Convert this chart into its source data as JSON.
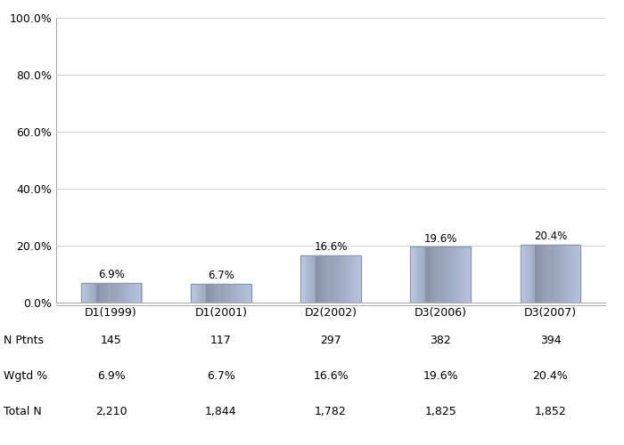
{
  "categories": [
    "D1(1999)",
    "D1(2001)",
    "D2(2002)",
    "D3(2006)",
    "D3(2007)"
  ],
  "values": [
    6.9,
    6.7,
    16.6,
    19.6,
    20.4
  ],
  "n_ptnts": [
    "145",
    "117",
    "297",
    "382",
    "394"
  ],
  "wgtd_pct": [
    "6.9%",
    "6.7%",
    "16.6%",
    "19.6%",
    "20.4%"
  ],
  "total_n": [
    "2,210",
    "1,844",
    "1,782",
    "1,825",
    "1,852"
  ],
  "ylim": [
    0,
    100
  ],
  "yticks": [
    0,
    20,
    40,
    60,
    80,
    100
  ],
  "ytick_labels": [
    "0.0%",
    "20.0%",
    "40.0%",
    "60.0%",
    "80.0%",
    "100.0%"
  ],
  "background_color": "#ffffff",
  "grid_color": "#d0d0d0",
  "label_row1": "N Ptnts",
  "label_row2": "Wgtd %",
  "label_row3": "Total N",
  "bar_edge_color": "#8899aa",
  "spine_color": "#aaaaaa"
}
